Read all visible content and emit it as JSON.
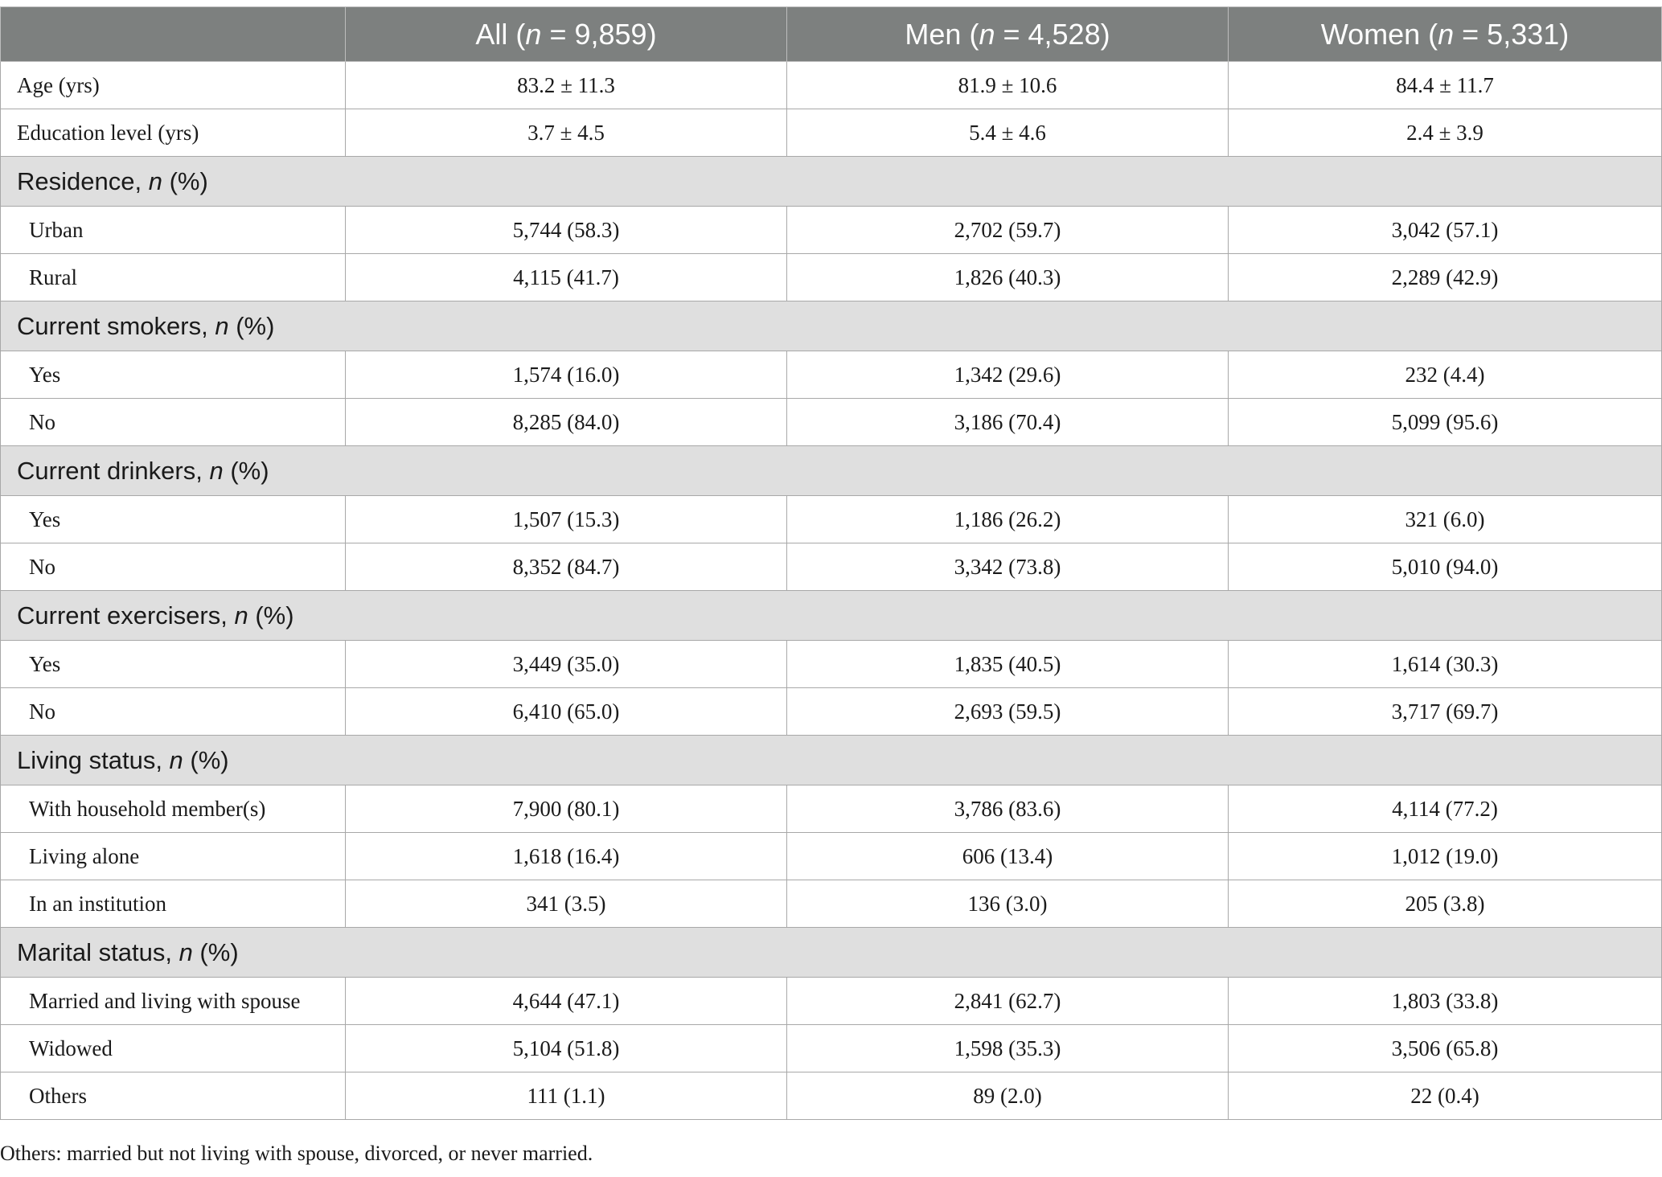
{
  "header": {
    "col0": "",
    "all": {
      "pre": "All (",
      "n": "n",
      "post": " = 9,859)"
    },
    "men": {
      "pre": "Men (",
      "n": "n",
      "post": " = 4,528)"
    },
    "women": {
      "pre": "Women (",
      "n": "n",
      "post": " = 5,331)"
    }
  },
  "rows": {
    "age": {
      "label": "Age (yrs)",
      "all": "83.2 ± 11.3",
      "men": "81.9 ± 10.6",
      "women": "84.4 ± 11.7"
    },
    "edu": {
      "label": "Education level (yrs)",
      "all": "3.7 ± 4.5",
      "men": "5.4 ± 4.6",
      "women": "2.4 ± 3.9"
    }
  },
  "sections": {
    "residence": {
      "title": "Residence, ",
      "n": "n",
      "pct": " (%)",
      "rows": [
        {
          "label": "Urban",
          "all": "5,744 (58.3)",
          "men": "2,702 (59.7)",
          "women": "3,042 (57.1)"
        },
        {
          "label": "Rural",
          "all": "4,115 (41.7)",
          "men": "1,826 (40.3)",
          "women": "2,289 (42.9)"
        }
      ]
    },
    "smokers": {
      "title": "Current smokers, ",
      "n": "n",
      "pct": " (%)",
      "rows": [
        {
          "label": "Yes",
          "all": "1,574 (16.0)",
          "men": "1,342 (29.6)",
          "women": "232 (4.4)"
        },
        {
          "label": "No",
          "all": "8,285 (84.0)",
          "men": "3,186 (70.4)",
          "women": "5,099 (95.6)"
        }
      ]
    },
    "drinkers": {
      "title": "Current drinkers, ",
      "n": "n",
      "pct": " (%)",
      "rows": [
        {
          "label": "Yes",
          "all": "1,507 (15.3)",
          "men": "1,186 (26.2)",
          "women": "321 (6.0)"
        },
        {
          "label": "No",
          "all": "8,352 (84.7)",
          "men": "3,342 (73.8)",
          "women": "5,010 (94.0)"
        }
      ]
    },
    "exercisers": {
      "title": "Current exercisers, ",
      "n": "n",
      "pct": " (%)",
      "rows": [
        {
          "label": "Yes",
          "all": "3,449 (35.0)",
          "men": "1,835 (40.5)",
          "women": "1,614 (30.3)"
        },
        {
          "label": "No",
          "all": "6,410 (65.0)",
          "men": "2,693 (59.5)",
          "women": "3,717 (69.7)"
        }
      ]
    },
    "living": {
      "title": "Living status, ",
      "n": "n",
      "pct": " (%)",
      "rows": [
        {
          "label": "With household member(s)",
          "all": "7,900 (80.1)",
          "men": "3,786 (83.6)",
          "women": "4,114 (77.2)"
        },
        {
          "label": "Living alone",
          "all": "1,618 (16.4)",
          "men": "606 (13.4)",
          "women": "1,012 (19.0)"
        },
        {
          "label": "In an institution",
          "all": "341 (3.5)",
          "men": "136 (3.0)",
          "women": "205 (3.8)"
        }
      ]
    },
    "marital": {
      "title": "Marital status, ",
      "n": "n",
      "pct": " (%)",
      "rows": [
        {
          "label": "Married and living with spouse",
          "all": "4,644 (47.1)",
          "men": "2,841 (62.7)",
          "women": "1,803 (33.8)"
        },
        {
          "label": "Widowed",
          "all": "5,104 (51.8)",
          "men": "1,598 (35.3)",
          "women": "3,506 (65.8)"
        },
        {
          "label": "Others",
          "all": "111 (1.1)",
          "men": "89 (2.0)",
          "women": "22 (0.4)"
        }
      ]
    }
  },
  "footnote": "Others: married but not living with spouse, divorced, or never married."
}
